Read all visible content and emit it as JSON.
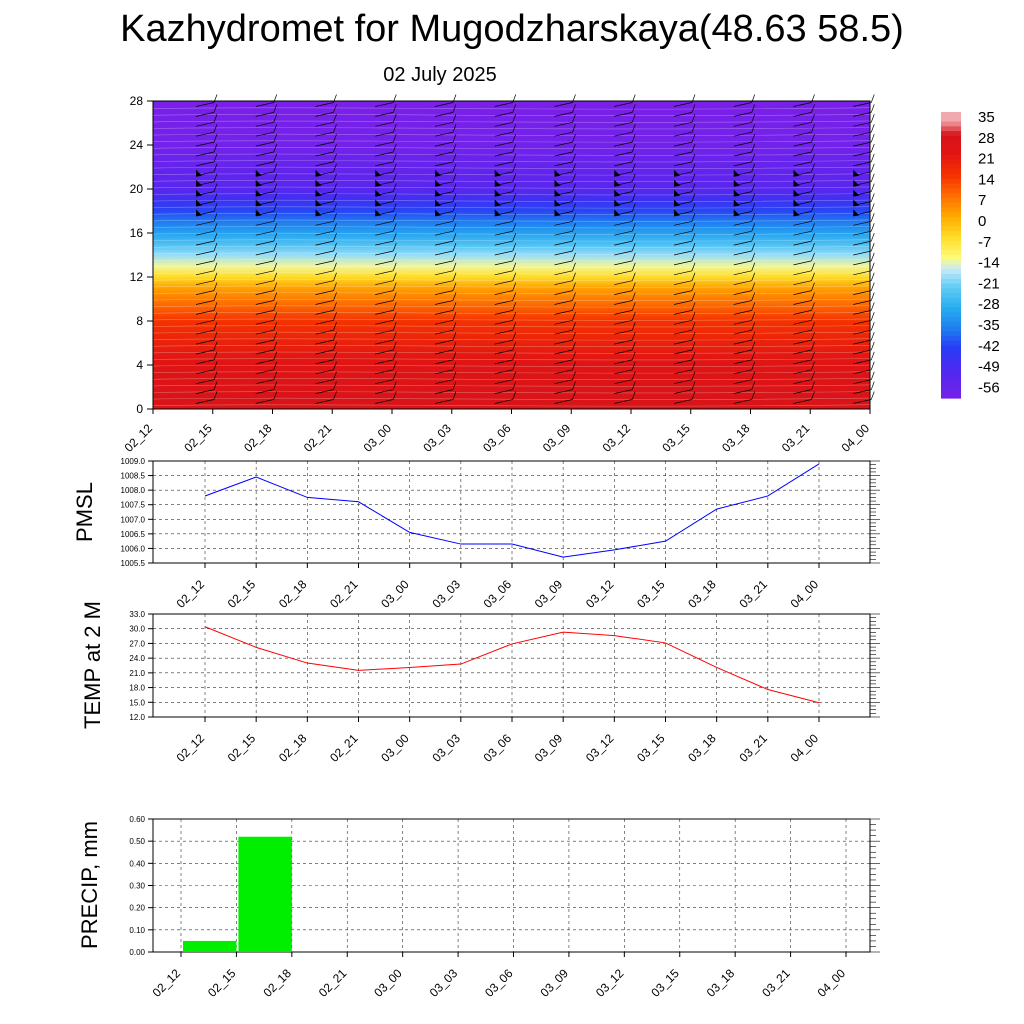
{
  "title": "Kazhydromet for Mugodzharskaya(48.63 58.5)",
  "subtitle": "02 July 2025",
  "time_labels": [
    "02_12",
    "02_15",
    "02_18",
    "02_21",
    "03_00",
    "03_03",
    "03_06",
    "03_09",
    "03_12",
    "03_15",
    "03_18",
    "03_21",
    "04_00"
  ],
  "chart_data": [
    {
      "type": "heatmap",
      "y_ticks": [
        0,
        4,
        8,
        12,
        16,
        20,
        24,
        28
      ],
      "ylim": [
        0,
        28
      ],
      "colorbar_ticks": [
        35,
        28,
        21,
        14,
        7,
        0,
        -7,
        -14,
        -21,
        -28,
        -35,
        -42,
        -49,
        -56
      ],
      "temperature_profile": [
        {
          "height": 0,
          "value": 31
        },
        {
          "height": 4,
          "value": 26
        },
        {
          "height": 8,
          "value": 17
        },
        {
          "height": 11,
          "value": 4
        },
        {
          "height": 13,
          "value": -12
        },
        {
          "height": 16,
          "value": -30
        },
        {
          "height": 20,
          "value": -52
        },
        {
          "height": 24,
          "value": -58
        },
        {
          "height": 28,
          "value": -60
        }
      ],
      "wind_barbs": true
    },
    {
      "type": "line",
      "ylabel": "PMSL",
      "ylim": [
        1005.5,
        1009.0
      ],
      "y_ticks": [
        "1005.5",
        "1006.0",
        "1006.5",
        "1007.0",
        "1007.5",
        "1008.0",
        "1008.5",
        "1009.0"
      ],
      "color": "#0000ff",
      "values": [
        1007.8,
        1008.45,
        1007.75,
        1007.6,
        1006.55,
        1006.15,
        1006.15,
        1005.7,
        1005.95,
        1006.25,
        1007.35,
        1007.8,
        1008.9
      ]
    },
    {
      "type": "line",
      "ylabel": "TEMP at 2 M",
      "ylim": [
        12.0,
        33.0
      ],
      "y_ticks": [
        "12.0",
        "15.0",
        "18.0",
        "21.0",
        "24.0",
        "27.0",
        "30.0",
        "33.0"
      ],
      "color": "#ff0000",
      "values": [
        30.4,
        26.2,
        23.0,
        21.5,
        22.1,
        22.8,
        26.9,
        29.3,
        28.6,
        27.1,
        22.1,
        17.6,
        14.9
      ]
    },
    {
      "type": "bar",
      "ylabel": "PRECIP, mm",
      "ylim": [
        0.0,
        0.6
      ],
      "y_ticks": [
        "0.00",
        "0.10",
        "0.20",
        "0.30",
        "0.40",
        "0.50",
        "0.60"
      ],
      "color": "#00ee00",
      "values": [
        0,
        0.05,
        0.52,
        0,
        0,
        0,
        0,
        0,
        0,
        0,
        0,
        0,
        0
      ]
    }
  ]
}
